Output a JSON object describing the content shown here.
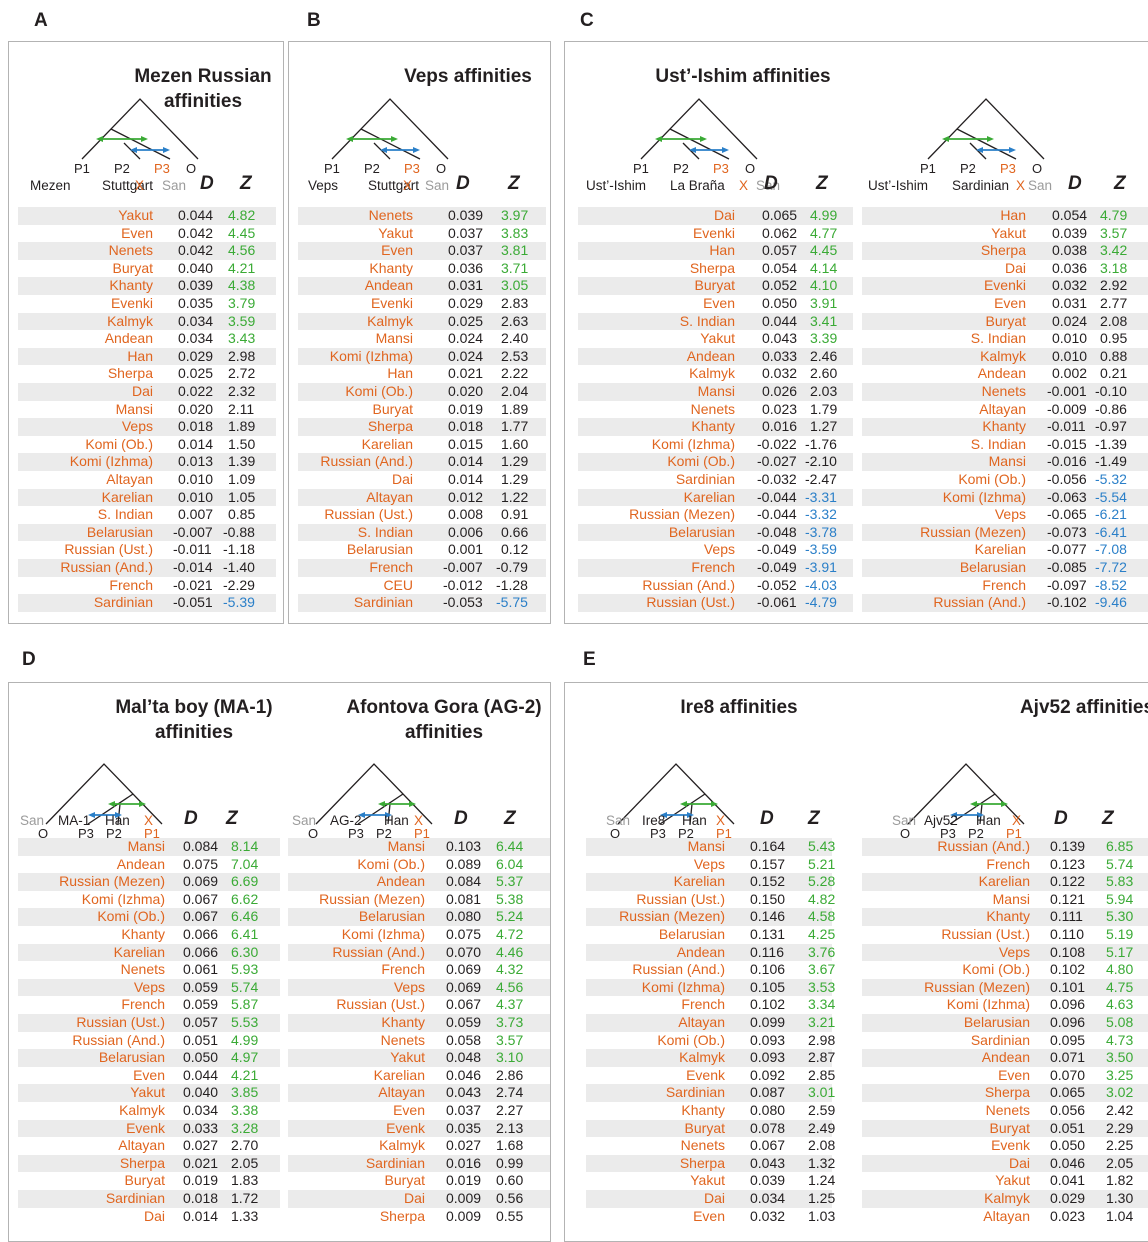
{
  "colors": {
    "population": "#e0651f",
    "significant_positive": "#3aaa35",
    "significant_negative": "#2a7fc8",
    "outgroup": "#9b9b9b",
    "frame": "#b3b3b3",
    "stripe": "#ebebeb"
  },
  "panel_labels": [
    "A",
    "B",
    "C",
    "D",
    "E"
  ],
  "column_headers": {
    "d": "D",
    "z": "Z"
  },
  "subpanels": [
    {
      "panel": "A",
      "title": [
        "Mezen Russian",
        "affinities"
      ],
      "tree_labels": [
        "P1",
        "P2",
        "P3",
        "O"
      ],
      "header": [
        "Mezen",
        "Stuttgart",
        "X",
        "San"
      ],
      "rows": [
        {
          "pop": "Yakut",
          "d": "0.044",
          "z": "4.82"
        },
        {
          "pop": "Even",
          "d": "0.042",
          "z": "4.45"
        },
        {
          "pop": "Nenets",
          "d": "0.042",
          "z": "4.56"
        },
        {
          "pop": "Buryat",
          "d": "0.040",
          "z": "4.21"
        },
        {
          "pop": "Khanty",
          "d": "0.039",
          "z": "4.38"
        },
        {
          "pop": "Evenki",
          "d": "0.035",
          "z": "3.79"
        },
        {
          "pop": "Kalmyk",
          "d": "0.034",
          "z": "3.59"
        },
        {
          "pop": "Andean",
          "d": "0.034",
          "z": "3.43"
        },
        {
          "pop": "Han",
          "d": "0.029",
          "z": "2.98"
        },
        {
          "pop": "Sherpa",
          "d": "0.025",
          "z": "2.72"
        },
        {
          "pop": "Dai",
          "d": "0.022",
          "z": "2.32"
        },
        {
          "pop": "Mansi",
          "d": "0.020",
          "z": "2.11"
        },
        {
          "pop": "Veps",
          "d": "0.018",
          "z": "1.89"
        },
        {
          "pop": "Komi (Ob.)",
          "d": "0.014",
          "z": "1.50"
        },
        {
          "pop": "Komi (Izhma)",
          "d": "0.013",
          "z": "1.39"
        },
        {
          "pop": "Altayan",
          "d": "0.010",
          "z": "1.09"
        },
        {
          "pop": "Karelian",
          "d": "0.010",
          "z": "1.05"
        },
        {
          "pop": "S. Indian",
          "d": "0.007",
          "z": "0.85"
        },
        {
          "pop": "Belarusian",
          "d": "-0.007",
          "z": "-0.88"
        },
        {
          "pop": "Russian (Ust.)",
          "d": "-0.011",
          "z": "-1.18"
        },
        {
          "pop": "Russian (And.)",
          "d": "-0.014",
          "z": "-1.40"
        },
        {
          "pop": "French",
          "d": "-0.021",
          "z": "-2.29"
        },
        {
          "pop": "Sardinian",
          "d": "-0.051",
          "z": "-5.39"
        }
      ]
    },
    {
      "panel": "B",
      "title": [
        "Veps affinities"
      ],
      "tree_labels": [
        "P1",
        "P2",
        "P3",
        "O"
      ],
      "header": [
        "Veps",
        "Stuttgart",
        "X",
        "San"
      ],
      "rows": [
        {
          "pop": "Nenets",
          "d": "0.039",
          "z": "3.97"
        },
        {
          "pop": "Yakut",
          "d": "0.037",
          "z": "3.83"
        },
        {
          "pop": "Even",
          "d": "0.037",
          "z": "3.81"
        },
        {
          "pop": "Khanty",
          "d": "0.036",
          "z": "3.71"
        },
        {
          "pop": "Andean",
          "d": "0.031",
          "z": "3.05"
        },
        {
          "pop": "Evenki",
          "d": "0.029",
          "z": "2.83"
        },
        {
          "pop": "Kalmyk",
          "d": "0.025",
          "z": "2.63"
        },
        {
          "pop": "Mansi",
          "d": "0.024",
          "z": "2.40"
        },
        {
          "pop": "Komi (Izhma)",
          "d": "0.024",
          "z": "2.53"
        },
        {
          "pop": "Han",
          "d": "0.021",
          "z": "2.22"
        },
        {
          "pop": "Komi (Ob.)",
          "d": "0.020",
          "z": "2.04"
        },
        {
          "pop": "Buryat",
          "d": "0.019",
          "z": "1.89"
        },
        {
          "pop": "Sherpa",
          "d": "0.018",
          "z": "1.77"
        },
        {
          "pop": "Karelian",
          "d": "0.015",
          "z": "1.60"
        },
        {
          "pop": "Russian (And.)",
          "d": "0.014",
          "z": "1.29"
        },
        {
          "pop": "Dai",
          "d": "0.014",
          "z": "1.29"
        },
        {
          "pop": "Altayan",
          "d": "0.012",
          "z": "1.22"
        },
        {
          "pop": "Russian (Ust.)",
          "d": "0.008",
          "z": "0.91"
        },
        {
          "pop": "S. Indian",
          "d": "0.006",
          "z": "0.66"
        },
        {
          "pop": "Belarusian",
          "d": "0.001",
          "z": "0.12"
        },
        {
          "pop": "French",
          "d": "-0.007",
          "z": "-0.79"
        },
        {
          "pop": "CEU",
          "d": "-0.012",
          "z": "-1.28"
        },
        {
          "pop": "Sardinian",
          "d": "-0.053",
          "z": "-5.75"
        }
      ]
    },
    {
      "panel": "C",
      "title": [
        "Ust’-Ishim affinities"
      ],
      "tree_labels": [
        "P1",
        "P2",
        "P3",
        "O"
      ],
      "header": [
        "Ust’-Ishim",
        "La Braña",
        "X",
        "San"
      ],
      "rows": [
        {
          "pop": "Dai",
          "d": "0.065",
          "z": "4.99"
        },
        {
          "pop": "Evenki",
          "d": "0.062",
          "z": "4.77"
        },
        {
          "pop": "Han",
          "d": "0.057",
          "z": "4.45"
        },
        {
          "pop": "Sherpa",
          "d": "0.054",
          "z": "4.14"
        },
        {
          "pop": "Buryat",
          "d": "0.052",
          "z": "4.10"
        },
        {
          "pop": "Even",
          "d": "0.050",
          "z": "3.91"
        },
        {
          "pop": "S. Indian",
          "d": "0.044",
          "z": "3.41"
        },
        {
          "pop": "Yakut",
          "d": "0.043",
          "z": "3.39"
        },
        {
          "pop": "Andean",
          "d": "0.033",
          "z": "2.46"
        },
        {
          "pop": "Kalmyk",
          "d": "0.032",
          "z": "2.60"
        },
        {
          "pop": "Mansi",
          "d": "0.026",
          "z": "2.03"
        },
        {
          "pop": "Nenets",
          "d": "0.023",
          "z": "1.79"
        },
        {
          "pop": "Khanty",
          "d": "0.016",
          "z": "1.27"
        },
        {
          "pop": "Komi (Izhma)",
          "d": "-0.022",
          "z": "-1.76"
        },
        {
          "pop": "Komi (Ob.)",
          "d": "-0.027",
          "z": "-2.10"
        },
        {
          "pop": "Sardinian",
          "d": "-0.032",
          "z": "-2.47"
        },
        {
          "pop": "Karelian",
          "d": "-0.044",
          "z": "-3.31"
        },
        {
          "pop": "Russian (Mezen)",
          "d": "-0.044",
          "z": "-3.32"
        },
        {
          "pop": "Belarusian",
          "d": "-0.048",
          "z": "-3.78"
        },
        {
          "pop": "Veps",
          "d": "-0.049",
          "z": "-3.59"
        },
        {
          "pop": "French",
          "d": "-0.049",
          "z": "-3.91"
        },
        {
          "pop": "Russian (And.)",
          "d": "-0.052",
          "z": "-4.03"
        },
        {
          "pop": "Russian (Ust.)",
          "d": "-0.061",
          "z": "-4.79"
        }
      ]
    },
    {
      "panel": "C",
      "title": [],
      "tree_labels": [
        "P1",
        "P2",
        "P3",
        "O"
      ],
      "header": [
        "Ust’-Ishim",
        "Sardinian",
        "X",
        "San"
      ],
      "rows": [
        {
          "pop": "Han",
          "d": "0.054",
          "z": "4.79"
        },
        {
          "pop": "Yakut",
          "d": "0.039",
          "z": "3.57"
        },
        {
          "pop": "Sherpa",
          "d": "0.038",
          "z": "3.42"
        },
        {
          "pop": "Dai",
          "d": "0.036",
          "z": "3.18"
        },
        {
          "pop": "Evenki",
          "d": "0.032",
          "z": "2.92"
        },
        {
          "pop": "Even",
          "d": "0.031",
          "z": "2.77"
        },
        {
          "pop": "Buryat",
          "d": "0.024",
          "z": "2.08"
        },
        {
          "pop": "S. Indian",
          "d": "0.010",
          "z": "0.95"
        },
        {
          "pop": "Kalmyk",
          "d": "0.010",
          "z": "0.88"
        },
        {
          "pop": "Andean",
          "d": "0.002",
          "z": "0.21"
        },
        {
          "pop": "Nenets",
          "d": "-0.001",
          "z": "-0.10"
        },
        {
          "pop": "Altayan",
          "d": "-0.009",
          "z": "-0.86"
        },
        {
          "pop": "Khanty",
          "d": "-0.011",
          "z": "-0.97"
        },
        {
          "pop": "S. Indian",
          "d": "-0.015",
          "z": "-1.39"
        },
        {
          "pop": "Mansi",
          "d": "-0.016",
          "z": "-1.49"
        },
        {
          "pop": "Komi (Ob.)",
          "d": "-0.056",
          "z": "-5.32"
        },
        {
          "pop": "Komi (Izhma)",
          "d": "-0.063",
          "z": "-5.54"
        },
        {
          "pop": "Veps",
          "d": "-0.065",
          "z": "-6.21"
        },
        {
          "pop": "Russian (Mezen)",
          "d": "-0.073",
          "z": "-6.41"
        },
        {
          "pop": "Karelian",
          "d": "-0.077",
          "z": "-7.08"
        },
        {
          "pop": "Belarusian",
          "d": "-0.085",
          "z": "-7.72"
        },
        {
          "pop": "French",
          "d": "-0.097",
          "z": "-8.52"
        },
        {
          "pop": "Russian (And.)",
          "d": "-0.102",
          "z": "-9.46"
        }
      ]
    },
    {
      "panel": "D",
      "title": [
        "Mal’ta boy (MA-1)",
        "affinities"
      ],
      "tree_labels": [
        "O",
        "P3",
        "P2",
        "P1"
      ],
      "header": [
        "San",
        "MA-1",
        "Han",
        "X"
      ],
      "rows": [
        {
          "pop": "Mansi",
          "d": "0.084",
          "z": "8.14"
        },
        {
          "pop": "Andean",
          "d": "0.075",
          "z": "7.04"
        },
        {
          "pop": "Russian (Mezen)",
          "d": "0.069",
          "z": "6.69"
        },
        {
          "pop": "Komi (Izhma)",
          "d": "0.067",
          "z": "6.62"
        },
        {
          "pop": "Komi (Ob.)",
          "d": "0.067",
          "z": "6.46"
        },
        {
          "pop": "Khanty",
          "d": "0.066",
          "z": "6.41"
        },
        {
          "pop": "Karelian",
          "d": "0.066",
          "z": "6.30"
        },
        {
          "pop": "Nenets",
          "d": "0.061",
          "z": "5.93"
        },
        {
          "pop": "Veps",
          "d": "0.059",
          "z": "5.74"
        },
        {
          "pop": "French",
          "d": "0.059",
          "z": "5.87"
        },
        {
          "pop": "Russian (Ust.)",
          "d": "0.057",
          "z": "5.53"
        },
        {
          "pop": "Russian (And.)",
          "d": "0.051",
          "z": "4.99"
        },
        {
          "pop": "Belarusian",
          "d": "0.050",
          "z": "4.97"
        },
        {
          "pop": "Even",
          "d": "0.044",
          "z": "4.21"
        },
        {
          "pop": "Yakut",
          "d": "0.040",
          "z": "3.85"
        },
        {
          "pop": "Kalmyk",
          "d": "0.034",
          "z": "3.38"
        },
        {
          "pop": "Evenk",
          "d": "0.033",
          "z": "3.28"
        },
        {
          "pop": "Altayan",
          "d": "0.027",
          "z": "2.70"
        },
        {
          "pop": "Sherpa",
          "d": "0.021",
          "z": "2.05"
        },
        {
          "pop": "Buryat",
          "d": "0.019",
          "z": "1.83"
        },
        {
          "pop": "Sardinian",
          "d": "0.018",
          "z": "1.72"
        },
        {
          "pop": "Dai",
          "d": "0.014",
          "z": "1.33"
        }
      ]
    },
    {
      "panel": "D",
      "title": [
        "Afontova Gora (AG-2)",
        "affinities"
      ],
      "tree_labels": [
        "O",
        "P3",
        "P2",
        "P1"
      ],
      "header": [
        "San",
        "AG-2",
        "Han",
        "X"
      ],
      "rows": [
        {
          "pop": "Mansi",
          "d": "0.103",
          "z": "6.44"
        },
        {
          "pop": "Komi (Ob.)",
          "d": "0.089",
          "z": "6.04"
        },
        {
          "pop": "Andean",
          "d": "0.084",
          "z": "5.37"
        },
        {
          "pop": "Russian (Mezen)",
          "d": "0.081",
          "z": "5.38"
        },
        {
          "pop": "Belarusian",
          "d": "0.080",
          "z": "5.24"
        },
        {
          "pop": "Komi (Izhma)",
          "d": "0.075",
          "z": "4.72"
        },
        {
          "pop": "Russian (And.)",
          "d": "0.070",
          "z": "4.46"
        },
        {
          "pop": "French",
          "d": "0.069",
          "z": "4.32"
        },
        {
          "pop": "Veps",
          "d": "0.069",
          "z": "4.56"
        },
        {
          "pop": "Russian (Ust.)",
          "d": "0.067",
          "z": "4.37"
        },
        {
          "pop": "Khanty",
          "d": "0.059",
          "z": "3.73"
        },
        {
          "pop": "Nenets",
          "d": "0.058",
          "z": "3.57"
        },
        {
          "pop": "Yakut",
          "d": "0.048",
          "z": "3.10"
        },
        {
          "pop": "Karelian",
          "d": "0.046",
          "z": "2.86"
        },
        {
          "pop": "Altayan",
          "d": "0.043",
          "z": "2.74"
        },
        {
          "pop": "Even",
          "d": "0.037",
          "z": "2.27"
        },
        {
          "pop": "Evenk",
          "d": "0.035",
          "z": "2.13"
        },
        {
          "pop": "Kalmyk",
          "d": "0.027",
          "z": "1.68"
        },
        {
          "pop": "Sardinian",
          "d": "0.016",
          "z": "0.99"
        },
        {
          "pop": "Buryat",
          "d": "0.019",
          "z": "0.60"
        },
        {
          "pop": "Dai",
          "d": "0.009",
          "z": "0.56"
        },
        {
          "pop": "Sherpa",
          "d": "0.009",
          "z": "0.55"
        }
      ]
    },
    {
      "panel": "E",
      "title": [
        "Ire8 affinities"
      ],
      "tree_labels": [
        "O",
        "P3",
        "P2",
        "P1"
      ],
      "header": [
        "San",
        "Ire8",
        "Han",
        "X"
      ],
      "rows": [
        {
          "pop": "Mansi",
          "d": "0.164",
          "z": "5.43"
        },
        {
          "pop": "Veps",
          "d": "0.157",
          "z": "5.21"
        },
        {
          "pop": "Karelian",
          "d": "0.152",
          "z": "5.28"
        },
        {
          "pop": "Russian (Ust.)",
          "d": "0.150",
          "z": "4.82"
        },
        {
          "pop": "Russian (Mezen)",
          "d": "0.146",
          "z": "4.58"
        },
        {
          "pop": "Belarusian",
          "d": "0.131",
          "z": "4.25"
        },
        {
          "pop": "Andean",
          "d": "0.116",
          "z": "3.76"
        },
        {
          "pop": "Russian (And.)",
          "d": "0.106",
          "z": "3.67"
        },
        {
          "pop": "Komi (Izhma)",
          "d": "0.105",
          "z": "3.53"
        },
        {
          "pop": "French",
          "d": "0.102",
          "z": "3.34"
        },
        {
          "pop": "Altayan",
          "d": "0.099",
          "z": "3.21"
        },
        {
          "pop": "Komi (Ob.)",
          "d": "0.093",
          "z": "2.98"
        },
        {
          "pop": "Kalmyk",
          "d": "0.093",
          "z": "2.87"
        },
        {
          "pop": "Evenk",
          "d": "0.092",
          "z": "2.85"
        },
        {
          "pop": "Sardinian",
          "d": "0.087",
          "z": "3.01"
        },
        {
          "pop": "Khanty",
          "d": "0.080",
          "z": "2.59"
        },
        {
          "pop": "Buryat",
          "d": "0.078",
          "z": "2.49"
        },
        {
          "pop": "Nenets",
          "d": "0.067",
          "z": "2.08"
        },
        {
          "pop": "Sherpa",
          "d": "0.043",
          "z": "1.32"
        },
        {
          "pop": "Yakut",
          "d": "0.039",
          "z": "1.24"
        },
        {
          "pop": "Dai",
          "d": "0.034",
          "z": "1.25"
        },
        {
          "pop": "Even",
          "d": "0.032",
          "z": "1.03"
        }
      ]
    },
    {
      "panel": "E",
      "title": [
        "Ajv52 affinities"
      ],
      "tree_labels": [
        "O",
        "P3",
        "P2",
        "P1"
      ],
      "header": [
        "San",
        "Ajv52",
        "Han",
        "X"
      ],
      "rows": [
        {
          "pop": "Russian (And.)",
          "d": "0.139",
          "z": "6.85"
        },
        {
          "pop": "French",
          "d": "0.123",
          "z": "5.74"
        },
        {
          "pop": "Karelian",
          "d": "0.122",
          "z": "5.83"
        },
        {
          "pop": "Mansi",
          "d": "0.121",
          "z": "5.94"
        },
        {
          "pop": "Khanty",
          "d": "0.111",
          "z": "5.30"
        },
        {
          "pop": "Russian (Ust.)",
          "d": "0.110",
          "z": "5.19"
        },
        {
          "pop": "Veps",
          "d": "0.108",
          "z": "5.17"
        },
        {
          "pop": "Komi (Ob.)",
          "d": "0.102",
          "z": "4.80"
        },
        {
          "pop": "Russian (Mezen)",
          "d": "0.101",
          "z": "4.75"
        },
        {
          "pop": "Komi (Izhma)",
          "d": "0.096",
          "z": "4.63"
        },
        {
          "pop": "Belarusian",
          "d": "0.096",
          "z": "5.08"
        },
        {
          "pop": "Sardinian",
          "d": "0.095",
          "z": "4.73"
        },
        {
          "pop": "Andean",
          "d": "0.071",
          "z": "3.50"
        },
        {
          "pop": "Even",
          "d": "0.070",
          "z": "3.25"
        },
        {
          "pop": "Sherpa",
          "d": "0.065",
          "z": "3.02"
        },
        {
          "pop": "Nenets",
          "d": "0.056",
          "z": "2.42"
        },
        {
          "pop": "Buryat",
          "d": "0.051",
          "z": "2.29"
        },
        {
          "pop": "Evenk",
          "d": "0.050",
          "z": "2.25"
        },
        {
          "pop": "Dai",
          "d": "0.046",
          "z": "2.05"
        },
        {
          "pop": "Yakut",
          "d": "0.041",
          "z": "1.82"
        },
        {
          "pop": "Kalmyk",
          "d": "0.029",
          "z": "1.30"
        },
        {
          "pop": "Altayan",
          "d": "0.023",
          "z": "1.04"
        }
      ]
    }
  ]
}
